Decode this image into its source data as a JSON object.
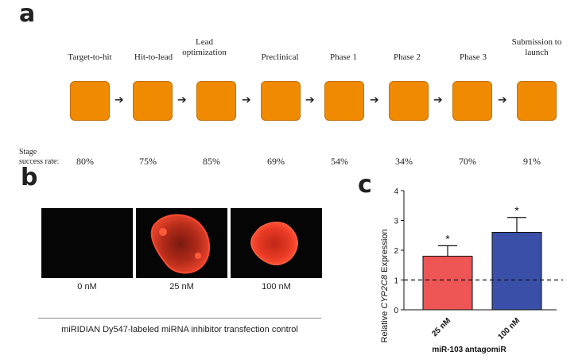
{
  "panel_a": {
    "letter": "a",
    "stages": [
      {
        "label": "Target-to-hit",
        "rate": "80%"
      },
      {
        "label": "Hit-to-lead",
        "rate": "75%"
      },
      {
        "label": "Lead optimization",
        "rate": "85%"
      },
      {
        "label": "Preclinical",
        "rate": "69%"
      },
      {
        "label": "Phase 1",
        "rate": "54%"
      },
      {
        "label": "Phase 2",
        "rate": "34%"
      },
      {
        "label": "Phase 3",
        "rate": "70%"
      },
      {
        "label": "Submission to launch",
        "rate": "91%"
      }
    ],
    "rate_caption": "Stage success rate:",
    "box_color": "#f08a00",
    "arrow_glyph": "➔"
  },
  "panel_b": {
    "letter": "b",
    "images": [
      {
        "label": "0 nM"
      },
      {
        "label": "25 nM"
      },
      {
        "label": "100 nM"
      }
    ],
    "caption": "miRIDIAN Dy547-labeled miRNA inhibitor transfection control"
  },
  "panel_c": {
    "letter": "c",
    "chart_data": {
      "type": "bar",
      "categories": [
        "25 nM",
        "100 nM"
      ],
      "values": [
        1.8,
        2.6
      ],
      "errors": [
        0.35,
        0.5
      ],
      "significance": [
        "*",
        "*"
      ],
      "colors": [
        "#ee5555",
        "#3a50a8"
      ],
      "ylabel_prefix": "Relative ",
      "ylabel_gene": "CYP2C8",
      "ylabel_suffix": " Expression",
      "xlabel": "miR-103 antagomiR",
      "ylim": [
        0,
        4
      ],
      "yticks": [
        "0",
        "1",
        "2",
        "3",
        "4"
      ],
      "reference_line": 1
    }
  }
}
